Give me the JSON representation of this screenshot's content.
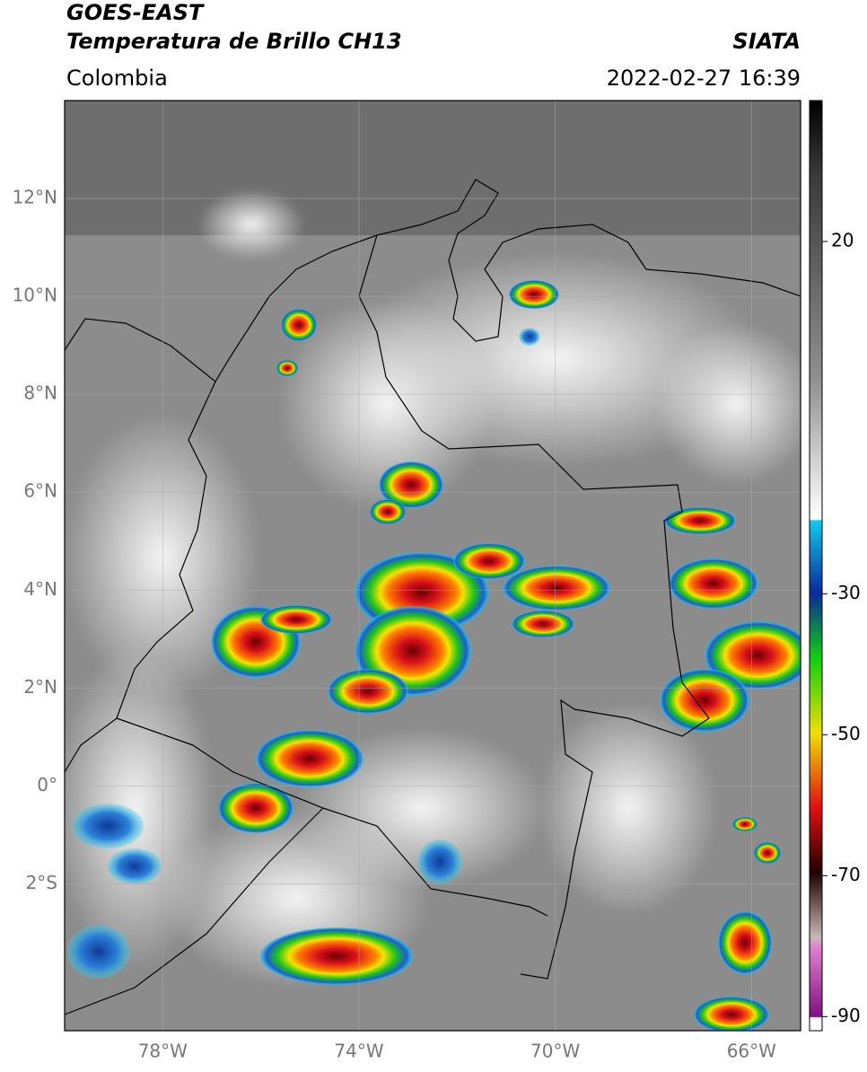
{
  "header": {
    "title": "GOES-EAST",
    "subtitle": "Temperatura de Brillo CH13",
    "source": "SIATA",
    "region": "Colombia",
    "datetime": "2022-02-27 16:39"
  },
  "map": {
    "lonlim": [
      -80,
      -65
    ],
    "latlim": [
      -5,
      14
    ],
    "lat_ticks": [
      {
        "value": 12,
        "label": "12°N"
      },
      {
        "value": 10,
        "label": "10°N"
      },
      {
        "value": 8,
        "label": "8°N"
      },
      {
        "value": 6,
        "label": "6°N"
      },
      {
        "value": 4,
        "label": "4°N"
      },
      {
        "value": 2,
        "label": "2°N"
      },
      {
        "value": 0,
        "label": "0°"
      },
      {
        "value": -2,
        "label": "2°S"
      }
    ],
    "lon_ticks": [
      {
        "value": -78,
        "label": "78°W"
      },
      {
        "value": -74,
        "label": "74°W"
      },
      {
        "value": -70,
        "label": "70°W"
      },
      {
        "value": -66,
        "label": "66°W"
      }
    ]
  },
  "colorbar": {
    "clim": [
      -92,
      40
    ],
    "ticks": [
      20,
      -30,
      -50,
      -70,
      -90
    ]
  }
}
